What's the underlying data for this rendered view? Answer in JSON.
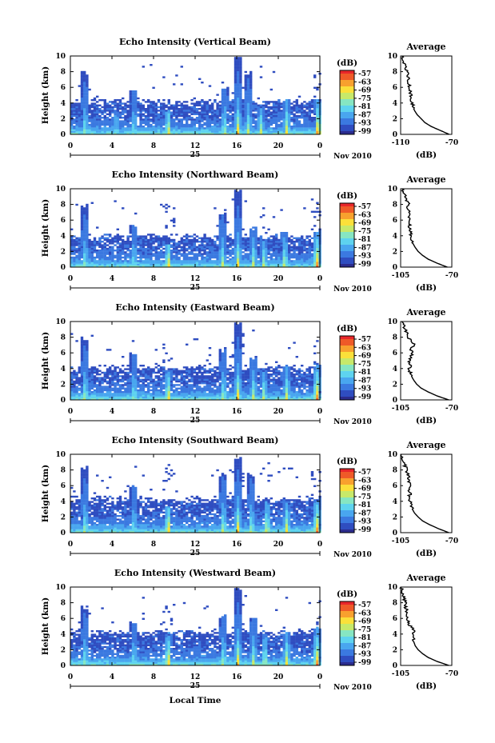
{
  "figure": {
    "xlabel": "Local Time",
    "date_label": "25",
    "month_label": "Nov 2010"
  },
  "colors": {
    "scale": [
      "#2b2c8e",
      "#2f4dc0",
      "#3b79e0",
      "#49a6ef",
      "#5ed3ef",
      "#86e6c2",
      "#c7e96a",
      "#fbe03a",
      "#f8a12e",
      "#ef5a28",
      "#e8262a"
    ],
    "line": "#000000"
  },
  "chart_data": [
    {
      "type": "heatmap",
      "title": "Echo Intensity (Vertical Beam)",
      "ylabel": "Height (km)",
      "xlim": [
        0,
        24
      ],
      "ylim": [
        0,
        10
      ],
      "xticks": [
        "0",
        "4",
        "8",
        "12",
        "16",
        "20",
        "0"
      ],
      "yticks": [
        "0",
        "2",
        "4",
        "6",
        "8",
        "10"
      ],
      "colorbar": {
        "unit": "(dB)",
        "ticks": [
          "-57",
          "-63",
          "-69",
          "-75",
          "-81",
          "-87",
          "-93",
          "-99"
        ]
      },
      "layer_top_km": 4.3,
      "cells": [
        {
          "hour": 1.3,
          "top_km": 8.1,
          "strength": 0.55
        },
        {
          "hour": 4.3,
          "top_km": 3.0,
          "strength": 0.45
        },
        {
          "hour": 6.0,
          "top_km": 5.8,
          "strength": 0.5
        },
        {
          "hour": 9.3,
          "top_km": 3.2,
          "strength": 0.7
        },
        {
          "hour": 14.7,
          "top_km": 6.0,
          "strength": 0.6
        },
        {
          "hour": 16.0,
          "top_km": 10.0,
          "strength": 0.75
        },
        {
          "hour": 17.0,
          "top_km": 8.0,
          "strength": 0.6
        },
        {
          "hour": 18.2,
          "top_km": 3.5,
          "strength": 0.6
        },
        {
          "hour": 20.7,
          "top_km": 4.5,
          "strength": 0.7
        },
        {
          "hour": 23.7,
          "top_km": 4.5,
          "strength": 0.9
        }
      ],
      "average": {
        "title": "Average",
        "xlabel": "(dB)",
        "xlim": [
          -110,
          -70
        ],
        "xticks": [
          "-110",
          "-70"
        ],
        "ylim": [
          0,
          10
        ],
        "yticks": [
          "0",
          "2",
          "4",
          "6",
          "8",
          "10"
        ],
        "height_km": [
          0,
          0.5,
          1,
          1.5,
          2,
          2.5,
          3,
          3.5,
          4,
          4.5,
          5,
          5.5,
          6,
          6.5,
          7,
          7.5,
          8,
          8.5,
          9,
          9.5,
          10
        ],
        "db": [
          -72,
          -79,
          -86,
          -91,
          -94,
          -97,
          -99,
          -100,
          -101,
          -101.5,
          -102,
          -102.5,
          -103,
          -103.5,
          -104,
          -104.5,
          -105,
          -106,
          -107,
          -108,
          -109
        ]
      }
    },
    {
      "type": "heatmap",
      "title": "Echo Intensity (Northward Beam)",
      "ylabel": "Height (km)",
      "xlim": [
        0,
        24
      ],
      "ylim": [
        0,
        10
      ],
      "xticks": [
        "0",
        "4",
        "8",
        "12",
        "16",
        "20",
        "0"
      ],
      "yticks": [
        "0",
        "2",
        "4",
        "6",
        "8",
        "10"
      ],
      "colorbar": {
        "unit": "(dB)",
        "ticks": [
          "-57",
          "-63",
          "-69",
          "-75",
          "-81",
          "-87",
          "-93",
          "-99"
        ]
      },
      "layer_top_km": 4.0,
      "cells": [
        {
          "hour": 1.3,
          "top_km": 8.0,
          "strength": 0.55
        },
        {
          "hour": 6.0,
          "top_km": 5.5,
          "strength": 0.5
        },
        {
          "hour": 9.3,
          "top_km": 3.0,
          "strength": 0.75
        },
        {
          "hour": 14.5,
          "top_km": 7.0,
          "strength": 0.6
        },
        {
          "hour": 16.0,
          "top_km": 10.0,
          "strength": 0.7
        },
        {
          "hour": 17.5,
          "top_km": 5.0,
          "strength": 0.6
        },
        {
          "hour": 18.5,
          "top_km": 3.5,
          "strength": 0.6
        },
        {
          "hour": 20.5,
          "top_km": 4.5,
          "strength": 0.65
        },
        {
          "hour": 23.6,
          "top_km": 4.8,
          "strength": 0.9
        }
      ],
      "average": {
        "title": "Average",
        "xlabel": "(dB)",
        "xlim": [
          -105,
          -70
        ],
        "xticks": [
          "-105",
          "-70"
        ],
        "ylim": [
          0,
          10
        ],
        "yticks": [
          "0",
          "2",
          "4",
          "6",
          "8",
          "10"
        ],
        "height_km": [
          0,
          0.5,
          1,
          1.5,
          2,
          2.5,
          3,
          3.5,
          4,
          4.5,
          5,
          5.5,
          6,
          6.5,
          7,
          7.5,
          8,
          8.5,
          9,
          9.5,
          10
        ],
        "db": [
          -73,
          -80,
          -86,
          -90,
          -93,
          -95,
          -96.5,
          -97.5,
          -98,
          -98.5,
          -99,
          -99,
          -98.5,
          -99,
          -99.5,
          -100,
          -99.5,
          -101,
          -102,
          -103,
          -104
        ]
      }
    },
    {
      "type": "heatmap",
      "title": "Echo Intensity (Eastward Beam)",
      "ylabel": "Height (km)",
      "xlim": [
        0,
        24
      ],
      "ylim": [
        0,
        10
      ],
      "xticks": [
        "0",
        "4",
        "8",
        "12",
        "16",
        "20",
        "0"
      ],
      "yticks": [
        "0",
        "2",
        "4",
        "6",
        "8",
        "10"
      ],
      "colorbar": {
        "unit": "(dB)",
        "ticks": [
          "-57",
          "-63",
          "-69",
          "-75",
          "-81",
          "-87",
          "-93",
          "-99"
        ]
      },
      "layer_top_km": 4.2,
      "cells": [
        {
          "hour": 1.3,
          "top_km": 8.0,
          "strength": 0.6
        },
        {
          "hour": 6.0,
          "top_km": 6.0,
          "strength": 0.55
        },
        {
          "hour": 9.3,
          "top_km": 4.0,
          "strength": 0.75
        },
        {
          "hour": 14.6,
          "top_km": 6.5,
          "strength": 0.6
        },
        {
          "hour": 16.0,
          "top_km": 10.0,
          "strength": 0.75
        },
        {
          "hour": 17.5,
          "top_km": 5.5,
          "strength": 0.6
        },
        {
          "hour": 18.5,
          "top_km": 4.0,
          "strength": 0.6
        },
        {
          "hour": 20.7,
          "top_km": 4.5,
          "strength": 0.65
        },
        {
          "hour": 23.6,
          "top_km": 4.6,
          "strength": 0.9
        }
      ],
      "average": {
        "title": "Average",
        "xlabel": "(dB)",
        "xlim": [
          -105,
          -70
        ],
        "xticks": [
          "-105",
          "-70"
        ],
        "ylim": [
          0,
          10
        ],
        "yticks": [
          "0",
          "2",
          "4",
          "6",
          "8",
          "10"
        ],
        "height_km": [
          0,
          0.5,
          1,
          1.5,
          2,
          2.5,
          3,
          3.5,
          4,
          4.5,
          5,
          5.5,
          6,
          6.5,
          7,
          7.5,
          8,
          8.5,
          9,
          9.5,
          10
        ],
        "db": [
          -72,
          -80,
          -86,
          -91,
          -94,
          -96,
          -97.5,
          -98.5,
          -99,
          -98.5,
          -99,
          -98,
          -96.5,
          -99,
          -94.5,
          -98,
          -100,
          -101,
          -102,
          -103,
          -104
        ]
      }
    },
    {
      "type": "heatmap",
      "title": "Echo Intensity (Southward Beam)",
      "ylabel": "Height (km)",
      "xlim": [
        0,
        24
      ],
      "ylim": [
        0,
        10
      ],
      "xticks": [
        "0",
        "4",
        "8",
        "12",
        "16",
        "20",
        "0"
      ],
      "yticks": [
        "0",
        "2",
        "4",
        "6",
        "8",
        "10"
      ],
      "colorbar": {
        "unit": "(dB)",
        "ticks": [
          "-57",
          "-63",
          "-69",
          "-75",
          "-81",
          "-87",
          "-93",
          "-99"
        ]
      },
      "layer_top_km": 4.4,
      "cells": [
        {
          "hour": 1.3,
          "top_km": 8.5,
          "strength": 0.6
        },
        {
          "hour": 6.0,
          "top_km": 6.0,
          "strength": 0.5
        },
        {
          "hour": 9.3,
          "top_km": 3.5,
          "strength": 0.8
        },
        {
          "hour": 14.6,
          "top_km": 7.5,
          "strength": 0.65
        },
        {
          "hour": 16.0,
          "top_km": 9.5,
          "strength": 0.75
        },
        {
          "hour": 17.3,
          "top_km": 7.5,
          "strength": 0.6
        },
        {
          "hour": 18.8,
          "top_km": 4.0,
          "strength": 0.7
        },
        {
          "hour": 20.7,
          "top_km": 4.0,
          "strength": 0.7
        },
        {
          "hour": 23.6,
          "top_km": 4.5,
          "strength": 0.9
        }
      ],
      "average": {
        "title": "Average",
        "xlabel": "(dB)",
        "xlim": [
          -105,
          -70
        ],
        "xticks": [
          "-105",
          "-70"
        ],
        "ylim": [
          0,
          10
        ],
        "yticks": [
          "0",
          "2",
          "4",
          "6",
          "8",
          "10"
        ],
        "height_km": [
          0,
          0.5,
          1,
          1.5,
          2,
          2.5,
          3,
          3.5,
          4,
          4.5,
          5,
          5.5,
          6,
          6.5,
          7,
          7.5,
          8,
          8.5,
          9,
          9.5,
          10
        ],
        "db": [
          -72,
          -79,
          -85,
          -90,
          -93,
          -95.5,
          -97,
          -98,
          -98.5,
          -99.5,
          -98.5,
          -99,
          -98.5,
          -99,
          -99.5,
          -100,
          -101,
          -102,
          -103,
          -104,
          -104.5
        ]
      }
    },
    {
      "type": "heatmap",
      "title": "Echo Intensity (Westward Beam)",
      "ylabel": "Height (km)",
      "xlim": [
        0,
        24
      ],
      "ylim": [
        0,
        10
      ],
      "xticks": [
        "0",
        "4",
        "8",
        "12",
        "16",
        "20",
        "0"
      ],
      "yticks": [
        "0",
        "2",
        "4",
        "6",
        "8",
        "10"
      ],
      "colorbar": {
        "unit": "(dB)",
        "ticks": [
          "-57",
          "-63",
          "-69",
          "-75",
          "-81",
          "-87",
          "-93",
          "-99"
        ]
      },
      "layer_top_km": 4.3,
      "cells": [
        {
          "hour": 1.3,
          "top_km": 7.5,
          "strength": 0.55
        },
        {
          "hour": 6.0,
          "top_km": 5.5,
          "strength": 0.5
        },
        {
          "hour": 9.3,
          "top_km": 4.0,
          "strength": 0.8
        },
        {
          "hour": 14.6,
          "top_km": 6.5,
          "strength": 0.6
        },
        {
          "hour": 16.0,
          "top_km": 10.0,
          "strength": 0.75
        },
        {
          "hour": 17.5,
          "top_km": 6.0,
          "strength": 0.6
        },
        {
          "hour": 18.6,
          "top_km": 4.0,
          "strength": 0.65
        },
        {
          "hour": 20.7,
          "top_km": 4.5,
          "strength": 0.7
        },
        {
          "hour": 23.6,
          "top_km": 4.8,
          "strength": 0.9
        }
      ],
      "average": {
        "title": "Average",
        "xlabel": "(dB)",
        "xlim": [
          -105,
          -70
        ],
        "xticks": [
          "-105",
          "-70"
        ],
        "ylim": [
          0,
          10
        ],
        "yticks": [
          "0",
          "2",
          "4",
          "6",
          "8",
          "10"
        ],
        "height_km": [
          0,
          0.5,
          1,
          1.5,
          2,
          2.5,
          3,
          3.5,
          4,
          4.5,
          5,
          5.5,
          6,
          6.5,
          7,
          7.5,
          8,
          8.5,
          9,
          9.5,
          10
        ],
        "db": [
          -72,
          -80,
          -86,
          -90,
          -93,
          -95,
          -96,
          -96.5,
          -97,
          -95.5,
          -98.5,
          -100,
          -100.5,
          -101,
          -101,
          -101.5,
          -102,
          -102.5,
          -103,
          -104,
          -104.5
        ]
      }
    }
  ]
}
